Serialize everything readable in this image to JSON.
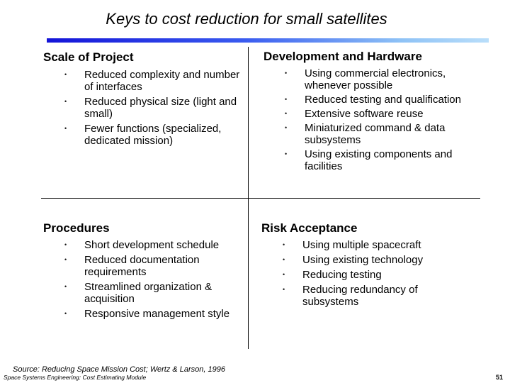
{
  "slide": {
    "title": "Keys to cost reduction for small satellites",
    "source": "Source: Reducing Space Mission Cost; Wertz & Larson, 1996",
    "module": "Space Systems Engineering: Cost Estimating Module",
    "page_number": "51",
    "accent_color": "#1414d8"
  },
  "quadrants": {
    "scale": {
      "heading": "Scale of Project",
      "items": [
        "Reduced complexity and number of interfaces",
        "Reduced physical size (light and small)",
        "Fewer functions (specialized, dedicated mission)"
      ]
    },
    "development": {
      "heading": "Development and Hardware",
      "items": [
        "Using commercial electronics, whenever possible",
        "Reduced testing and qualification",
        "Extensive software reuse",
        "Miniaturized command & data subsystems",
        "Using existing components and facilities"
      ]
    },
    "procedures": {
      "heading": "Procedures",
      "items": [
        "Short development schedule",
        "Reduced documentation requirements",
        "Streamlined organization & acquisition",
        "Responsive management style"
      ]
    },
    "risk": {
      "heading": "Risk Acceptance",
      "items": [
        "Using multiple spacecraft",
        "Using existing technology",
        "Reducing testing",
        "Reducing redundancy of subsystems"
      ]
    }
  },
  "bullet_glyph": "•"
}
